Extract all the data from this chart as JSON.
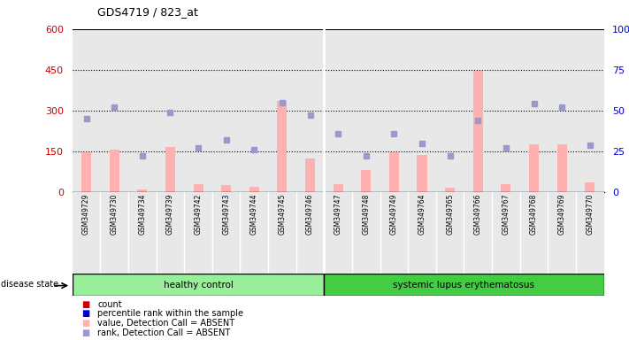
{
  "title": "GDS4719 / 823_at",
  "samples": [
    "GSM349729",
    "GSM349730",
    "GSM349734",
    "GSM349739",
    "GSM349742",
    "GSM349743",
    "GSM349744",
    "GSM349745",
    "GSM349746",
    "GSM349747",
    "GSM349748",
    "GSM349749",
    "GSM349764",
    "GSM349765",
    "GSM349766",
    "GSM349767",
    "GSM349768",
    "GSM349769",
    "GSM349770"
  ],
  "n_healthy": 9,
  "n_sle": 10,
  "bar_values": [
    145,
    155,
    10,
    165,
    30,
    25,
    20,
    335,
    125,
    30,
    80,
    145,
    135,
    15,
    445,
    30,
    175,
    175,
    35
  ],
  "dot_values": [
    45,
    52,
    22,
    49,
    27,
    32,
    26,
    55,
    47,
    36,
    22,
    36,
    30,
    22,
    44,
    27,
    54,
    52,
    29
  ],
  "left_ylim": [
    0,
    600
  ],
  "right_ylim": [
    0,
    100
  ],
  "left_yticks": [
    0,
    150,
    300,
    450,
    600
  ],
  "right_yticks": [
    0,
    25,
    50,
    75,
    100
  ],
  "left_ylabel_color": "#cc0000",
  "right_ylabel_color": "#0000cc",
  "bar_color": "#ffb0b0",
  "dot_color": "#9999cc",
  "plot_bg_color": "#e8e8e8",
  "col_sep_color": "#ffffff",
  "legend_items": [
    {
      "label": "count",
      "color": "#cc0000",
      "marker": "s"
    },
    {
      "label": "percentile rank within the sample",
      "color": "#0000cc",
      "marker": "s"
    },
    {
      "label": "value, Detection Call = ABSENT",
      "color": "#ffb0b0",
      "marker": "s"
    },
    {
      "label": "rank, Detection Call = ABSENT",
      "color": "#9999cc",
      "marker": "s"
    }
  ],
  "healthy_control_color": "#99ee99",
  "sle_color": "#44cc44",
  "group_label_healthy": "healthy control",
  "group_label_sle": "systemic lupus erythematosus",
  "disease_state_label": "disease state"
}
